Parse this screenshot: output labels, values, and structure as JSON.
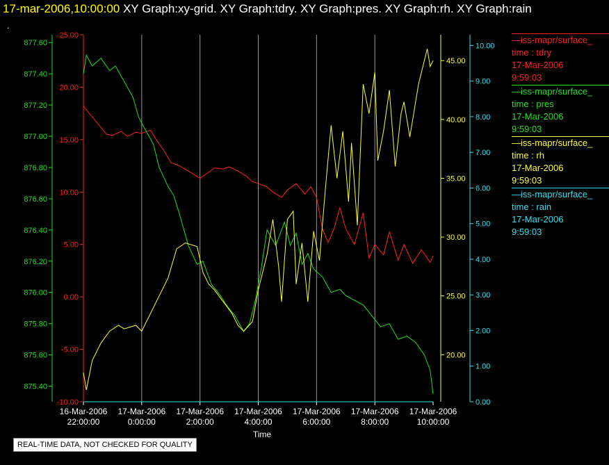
{
  "header": {
    "date": "17-mar-2006,10:00:00",
    "graphs": "XY Graph:xy-grid.  XY Graph:tdry.  XY Graph:pres.  XY Graph:rh.  XY Graph:rain"
  },
  "dot": ".",
  "legend": [
    {
      "series": "—iss-mapr/surface_",
      "var": "time : tdry",
      "date": "17-Mar-2006",
      "time": "9:59:03",
      "color": "#ff2020"
    },
    {
      "series": "—iss-mapr/surface_",
      "var": "time : pres",
      "date": "17-Mar-2006",
      "time": "9:59:03",
      "color": "#20e020"
    },
    {
      "series": "—iss-mapr/surface_",
      "var": "time : rh",
      "date": "17-Mar-2006",
      "time": "9:59:03",
      "color": "#ffff30"
    },
    {
      "series": "—iss-mapr/surface_",
      "var": "time : rain",
      "date": "17-Mar-2006",
      "time": "9:59:03",
      "color": "#30e0f0"
    }
  ],
  "note": "REAL-TIME DATA, NOT CHECKED FOR QUALITY",
  "chart_data": {
    "type": "line",
    "xlabel": "Time",
    "x_ticks": [
      {
        "label": [
          "16-Mar-2006",
          "22:00:00"
        ],
        "hours": 0
      },
      {
        "label": [
          "17-Mar-2006",
          "0:00:00"
        ],
        "hours": 2
      },
      {
        "label": [
          "17-Mar-2006",
          "2:00:00"
        ],
        "hours": 4
      },
      {
        "label": [
          "17-Mar-2006",
          "4:00:00"
        ],
        "hours": 6
      },
      {
        "label": [
          "17-Mar-2006",
          "6:00:00"
        ],
        "hours": 8
      },
      {
        "label": [
          "17-Mar-2006",
          "8:00:00"
        ],
        "hours": 10
      },
      {
        "label": [
          "17-Mar-2006",
          "10:00:00"
        ],
        "hours": 12
      }
    ],
    "xlim": [
      "16-Mar-2006 22:00:00",
      "17-Mar-2006 10:00:00"
    ],
    "grid": "vertical",
    "axes": {
      "pres": {
        "color": "#20e020",
        "ylim": [
          875.3,
          877.65
        ],
        "ticks": [
          "875.40",
          "875.60",
          "875.80",
          "876.00",
          "876.20",
          "876.40",
          "876.60",
          "876.80",
          "877.00",
          "877.20",
          "877.40",
          "877.60"
        ]
      },
      "tdry": {
        "color": "#ff2020",
        "ylim": [
          -10,
          25
        ],
        "ticks": [
          "-10.00",
          "-5.00",
          "0.00",
          "5.00",
          "10.00",
          "15.00",
          "20.00",
          "25.00"
        ]
      },
      "rh": {
        "color": "#ffff30",
        "ylim": [
          16,
          47.2
        ],
        "ticks": [
          "20.00",
          "25.00",
          "30.00",
          "35.00",
          "40.00",
          "45.00"
        ]
      },
      "rain": {
        "color": "#30e0f0",
        "ylim": [
          0,
          10.3
        ],
        "ticks": [
          "0.00",
          "1.00",
          "2.00",
          "3.00",
          "4.00",
          "5.00",
          "6.00",
          "7.00",
          "8.00",
          "9.00",
          "10.00"
        ]
      }
    },
    "series": [
      {
        "axis": "tdry",
        "x": [
          0,
          0.2,
          0.5,
          0.8,
          1.0,
          1.3,
          1.5,
          1.8,
          2.0,
          2.3,
          2.5,
          2.8,
          3.0,
          3.3,
          3.6,
          4.0,
          4.2,
          4.5,
          4.8,
          5.0,
          5.3,
          5.6,
          5.8,
          6.0,
          6.3,
          6.5,
          6.8,
          7.0,
          7.3,
          7.6,
          7.8,
          8.0,
          8.2,
          8.4,
          8.6,
          8.8,
          9.0,
          9.3,
          9.6,
          9.8,
          10.0,
          10.3,
          10.5,
          10.8,
          11.0,
          11.3,
          11.6,
          11.9,
          12.0
        ],
        "y": [
          18.2,
          17.5,
          16.5,
          15.5,
          15.4,
          15.8,
          15.3,
          15.7,
          15.6,
          15.9,
          15.0,
          13.8,
          12.8,
          12.5,
          12.0,
          11.3,
          11.7,
          12.3,
          12.2,
          12.4,
          12.0,
          11.5,
          11.0,
          10.8,
          10.5,
          10.0,
          9.5,
          10.2,
          10.8,
          9.8,
          10.5,
          9.5,
          6.5,
          5.2,
          6.5,
          8.5,
          6.5,
          5.0,
          8.0,
          3.7,
          5.0,
          4.0,
          6.2,
          3.5,
          5.0,
          3.2,
          4.5,
          3.3,
          3.9
        ]
      },
      {
        "axis": "pres",
        "x": [
          0,
          0.1,
          0.3,
          0.6,
          0.9,
          1.1,
          1.4,
          1.7,
          1.9,
          2.1,
          2.4,
          2.6,
          2.9,
          3.1,
          3.3,
          3.6,
          3.9,
          4.1,
          4.4,
          4.7,
          4.9,
          5.2,
          5.5,
          5.7,
          5.9,
          6.1,
          6.3,
          6.6,
          6.9,
          7.1,
          7.3,
          7.5,
          7.7,
          7.9,
          8.2,
          8.5,
          8.8,
          9.0,
          9.3,
          9.6,
          9.9,
          10.2,
          10.5,
          10.8,
          11.1,
          11.4,
          11.7,
          11.9,
          12.0
        ],
        "y": [
          877.4,
          877.52,
          877.45,
          877.5,
          877.42,
          877.45,
          877.35,
          877.25,
          877.12,
          877.05,
          876.95,
          876.8,
          876.68,
          876.62,
          876.5,
          876.3,
          876.18,
          876.2,
          876.05,
          875.98,
          875.92,
          875.85,
          875.75,
          875.8,
          875.95,
          876.15,
          876.4,
          876.3,
          876.45,
          876.3,
          876.38,
          876.18,
          876.25,
          876.15,
          876.1,
          876.0,
          876.02,
          875.98,
          875.95,
          875.92,
          875.85,
          875.78,
          875.8,
          875.7,
          875.72,
          875.68,
          875.6,
          875.5,
          875.35
        ]
      },
      {
        "axis": "rh",
        "x": [
          0,
          0.1,
          0.3,
          0.6,
          0.9,
          1.2,
          1.4,
          1.8,
          2.0,
          2.3,
          2.6,
          2.9,
          3.2,
          3.5,
          3.9,
          4.1,
          4.3,
          4.5,
          4.8,
          5.1,
          5.3,
          5.5,
          5.8,
          6.0,
          6.3,
          6.5,
          6.7,
          6.8,
          7.0,
          7.2,
          7.3,
          7.5,
          7.7,
          7.9,
          8.1,
          8.3,
          8.5,
          8.7,
          8.9,
          9.1,
          9.2,
          9.4,
          9.6,
          9.8,
          10.0,
          10.1,
          10.3,
          10.5,
          10.7,
          10.9,
          11.0,
          11.2,
          11.5,
          11.8,
          11.9,
          12.0
        ],
        "y": [
          18.5,
          17.0,
          19.5,
          21.0,
          22.0,
          22.5,
          22.2,
          22.5,
          22.0,
          23.5,
          25.0,
          26.5,
          29.0,
          29.5,
          29.2,
          27.0,
          26.0,
          25.5,
          24.5,
          23.5,
          22.5,
          22.0,
          22.8,
          25.5,
          28.5,
          31.5,
          27.5,
          24.5,
          31.5,
          32.2,
          26.0,
          29.5,
          24.5,
          30.5,
          28.0,
          34.0,
          39.5,
          35.0,
          39.0,
          33.0,
          38.0,
          31.0,
          43.0,
          40.5,
          44.0,
          36.5,
          39.0,
          42.5,
          36.0,
          40.5,
          41.5,
          38.5,
          43.0,
          46.0,
          44.5,
          45.0
        ]
      },
      {
        "axis": "rain",
        "x": [
          0,
          12
        ],
        "y": [
          0,
          0
        ]
      }
    ]
  }
}
